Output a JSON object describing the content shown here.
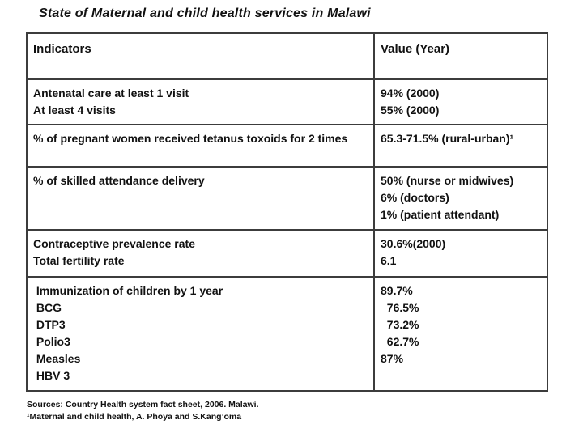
{
  "page": {
    "title": "State of Maternal and child health services in Malawi"
  },
  "table": {
    "headers": {
      "indicators": "Indicators",
      "value": "Value (Year)"
    },
    "rows": [
      {
        "indicator_lines": [
          "Antenatal care at least 1 visit",
          "At least 4 visits"
        ],
        "value_lines": [
          "94% (2000)",
          "55% (2000)"
        ]
      },
      {
        "indicator_lines": [
          "% of pregnant women received tetanus toxoids for 2 times"
        ],
        "value_lines": [
          "65.3-71.5% (rural-urban)¹"
        ]
      },
      {
        "indicator_lines": [
          "% of skilled attendance delivery"
        ],
        "value_lines": [
          "50% (nurse or midwives)",
          "6% (doctors)",
          "1% (patient attendant)"
        ]
      },
      {
        "indicator_lines": [
          "Contraceptive prevalence rate",
          "Total fertility rate"
        ],
        "value_lines": [
          "30.6%(2000)",
          "6.1"
        ]
      },
      {
        "indicator_lines": [
          " Immunization of children by 1 year",
          " BCG",
          " DTP3",
          " Polio3",
          " Measles",
          " HBV 3"
        ],
        "value_lines": [
          "89.7%",
          "  76.5%",
          "  73.2%",
          "  62.7%",
          "87%"
        ]
      }
    ]
  },
  "footer": {
    "line1": "Sources: Country Health system fact sheet, 2006. Malawi.",
    "line2": "¹Maternal and child health, A. Phoya and S.Kang’oma"
  }
}
